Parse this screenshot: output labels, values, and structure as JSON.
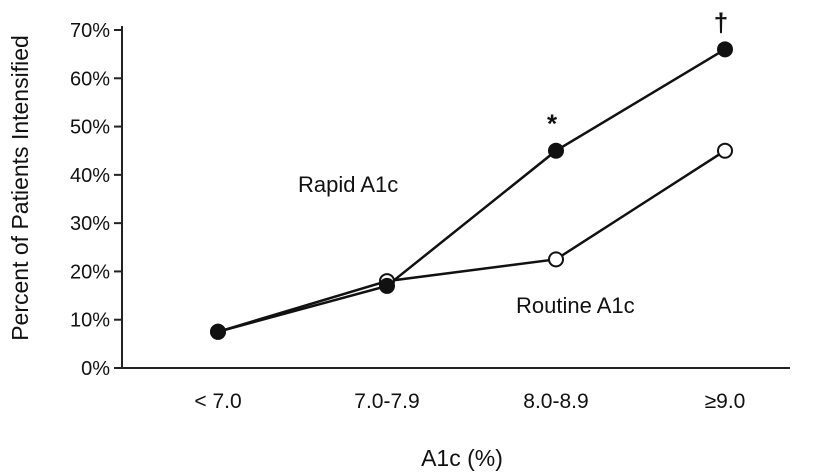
{
  "chart_data": {
    "type": "line",
    "title": "",
    "xlabel": "A1c (%)",
    "ylabel": "Percent of Patients Intensified",
    "categories": [
      "< 7.0",
      "7.0-7.9",
      "8.0-8.9",
      "≥9.0"
    ],
    "yticks": [
      "0%",
      "10%",
      "20%",
      "30%",
      "40%",
      "50%",
      "60%",
      "70%"
    ],
    "ylim": [
      0,
      70
    ],
    "grid": false,
    "series": [
      {
        "name": "Rapid A1c",
        "marker": "filled-circle",
        "values": [
          7.5,
          17,
          45,
          66
        ]
      },
      {
        "name": "Routine A1c",
        "marker": "open-circle",
        "values": [
          7.5,
          18,
          22.5,
          45
        ]
      }
    ],
    "annotations": [
      {
        "text": "*",
        "category": "8.0-8.9",
        "series": "Rapid A1c"
      },
      {
        "text": "†",
        "category": "≥9.0",
        "series": "Rapid A1c"
      }
    ]
  }
}
